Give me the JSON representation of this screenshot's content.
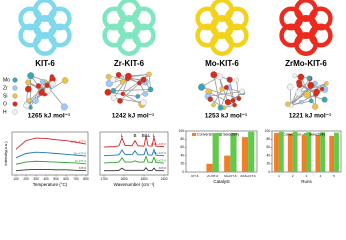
{
  "materials": [
    {
      "name": "KIT-6",
      "color": "#7fd8ec",
      "energy": "1265 kJ mol⁻¹"
    },
    {
      "name": "Zr-KIT-6",
      "color": "#7fe6c0",
      "energy": "1242 kJ mol⁻¹"
    },
    {
      "name": "Mo-KIT-6",
      "color": "#f3d21c",
      "energy": "1253 kJ mol⁻¹"
    },
    {
      "name": "ZrMo-KIT-6",
      "color": "#ec2a1e",
      "energy": "1221 kJ mol⁻¹"
    }
  ],
  "atom_legend": [
    {
      "name": "Mo",
      "color": "#3aa7b8"
    },
    {
      "name": "Zr",
      "color": "#9ec9ff"
    },
    {
      "name": "Si",
      "color": "#e9c34a"
    },
    {
      "name": "O",
      "color": "#d92b1a"
    },
    {
      "name": "H",
      "color": "#f2f2f2"
    }
  ],
  "chart_data": [
    {
      "type": "line",
      "xlabel": "Temperature (°C)",
      "ylabel": "Intensity(a.u.)",
      "x": [
        100,
        200,
        300,
        400,
        500,
        600,
        700,
        800
      ],
      "xlim": [
        60,
        820
      ],
      "xticks": [
        100,
        200,
        300,
        400,
        500,
        600,
        700,
        800
      ],
      "ylim": [
        0,
        10
      ],
      "series": [
        {
          "name": "ZrMo-KIT-6",
          "color": "#d62728",
          "values": [
            6,
            8,
            8.6,
            8.5,
            8.2,
            8,
            7.6,
            7.2
          ]
        },
        {
          "name": "Mo-KIT-6",
          "color": "#1f77b4",
          "values": [
            4,
            5,
            5.3,
            5.2,
            5,
            4.8,
            4.6,
            4.4
          ]
        },
        {
          "name": "Zr-KIT-6",
          "color": "#2ca02c",
          "values": [
            2.5,
            3,
            3.2,
            3.1,
            3,
            2.9,
            2.8,
            2.6
          ]
        },
        {
          "name": "KIT-6",
          "color": "#333333",
          "values": [
            1,
            1.2,
            1.3,
            1.3,
            1.2,
            1.2,
            1.1,
            1
          ]
        }
      ]
    },
    {
      "type": "line",
      "xlabel": "Wavenumber (cm⁻¹)",
      "x": [
        1700,
        1650,
        1625,
        1610,
        1595,
        1560,
        1545,
        1530,
        1500,
        1490,
        1480,
        1460,
        1450,
        1440,
        1400
      ],
      "xlim": [
        1720,
        1380
      ],
      "xticks": [
        1700,
        1600,
        1500,
        1400
      ],
      "ylim": [
        0,
        10
      ],
      "annotations": [
        {
          "text": "L",
          "x": 1610
        },
        {
          "text": "B",
          "x": 1545
        },
        {
          "text": "B&L",
          "x": 1490
        },
        {
          "text": "L",
          "x": 1450
        }
      ],
      "series": [
        {
          "name": "ZrMo-KIT-6",
          "color": "#d62728",
          "values": [
            6.5,
            6.6,
            6.8,
            8.6,
            6.9,
            6.8,
            8,
            6.8,
            6.7,
            9,
            6.8,
            6.7,
            8.8,
            6.7,
            6.6
          ]
        },
        {
          "name": "Mo-KIT-6",
          "color": "#1f77b4",
          "values": [
            4.5,
            4.6,
            4.7,
            5.8,
            4.8,
            4.7,
            5.6,
            4.7,
            4.7,
            6.2,
            4.7,
            4.6,
            5.9,
            4.6,
            4.5
          ]
        },
        {
          "name": "Zr-KIT-6",
          "color": "#2ca02c",
          "values": [
            2.8,
            2.9,
            3,
            4,
            3,
            3,
            3.3,
            3,
            3,
            4.3,
            3,
            2.9,
            4.1,
            2.9,
            2.8
          ]
        },
        {
          "name": "KIT-6",
          "color": "#333333",
          "values": [
            1,
            1,
            1.1,
            1.6,
            1.1,
            1.1,
            1.1,
            1.1,
            1.1,
            1.7,
            1.1,
            1,
            1.6,
            1,
            1
          ]
        }
      ]
    },
    {
      "type": "bar",
      "xlabel": "Catalyst",
      "categories": [
        "KIT-6",
        "Zr-KIT-6",
        "Mo-KIT-6",
        "ZrMo-KIT-6"
      ],
      "ylim": [
        0,
        100
      ],
      "yticks": [
        0,
        20,
        40,
        60,
        80,
        100
      ],
      "series": [
        {
          "name": "Conversion",
          "color": "#f07f27",
          "values": [
            0,
            20,
            40,
            85
          ]
        },
        {
          "name": "Selectivity",
          "color": "#63c94b",
          "values": [
            0,
            95,
            95,
            98
          ]
        }
      ]
    },
    {
      "type": "bar",
      "xlabel": "Runs",
      "categories": [
        "1",
        "2",
        "3",
        "4",
        "5"
      ],
      "ylim": [
        0,
        100
      ],
      "yticks": [
        0,
        20,
        40,
        60,
        80,
        100
      ],
      "series": [
        {
          "name": "Conversion",
          "color": "#f07f27",
          "values": [
            95,
            93,
            92,
            90,
            88
          ]
        },
        {
          "name": "Selectivity",
          "color": "#63c94b",
          "values": [
            98,
            98,
            97,
            97,
            96
          ]
        }
      ]
    }
  ]
}
